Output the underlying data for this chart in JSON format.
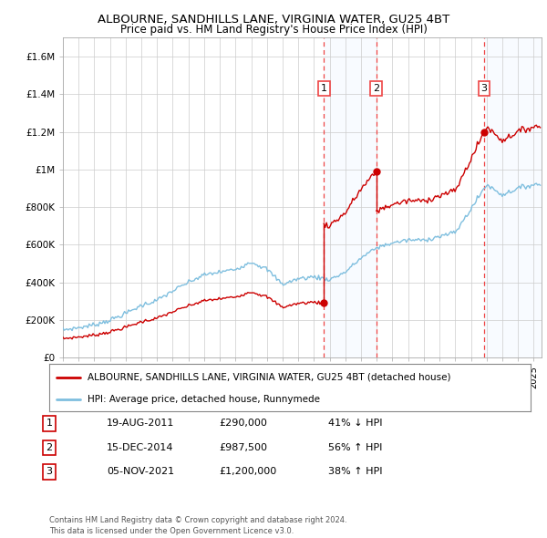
{
  "title": "ALBOURNE, SANDHILLS LANE, VIRGINIA WATER, GU25 4BT",
  "subtitle": "Price paid vs. HM Land Registry's House Price Index (HPI)",
  "ylim": [
    0,
    1700000
  ],
  "yticks": [
    0,
    200000,
    400000,
    600000,
    800000,
    1000000,
    1200000,
    1400000,
    1600000
  ],
  "ytick_labels": [
    "£0",
    "£200K",
    "£400K",
    "£600K",
    "£800K",
    "£1M",
    "£1.2M",
    "£1.4M",
    "£1.6M"
  ],
  "hpi_color": "#7fbfdf",
  "price_color": "#cc0000",
  "vline_color": "#ee4444",
  "shade_color": "#ddeeff",
  "legend_box_label": "ALBOURNE, SANDHILLS LANE, VIRGINIA WATER, GU25 4BT (detached house)",
  "legend_hpi_label": "HPI: Average price, detached house, Runnymede",
  "transactions": [
    {
      "price": 290000,
      "label": "1",
      "x_year": 2011.63
    },
    {
      "price": 987500,
      "label": "2",
      "x_year": 2014.96
    },
    {
      "price": 1200000,
      "label": "3",
      "x_year": 2021.84
    }
  ],
  "table_rows": [
    [
      "1",
      "19-AUG-2011",
      "£290,000",
      "41% ↓ HPI"
    ],
    [
      "2",
      "15-DEC-2014",
      "£987,500",
      "56% ↑ HPI"
    ],
    [
      "3",
      "05-NOV-2021",
      "£1,200,000",
      "38% ↑ HPI"
    ]
  ],
  "footer": "Contains HM Land Registry data © Crown copyright and database right 2024.\nThis data is licensed under the Open Government Licence v3.0.",
  "background_color": "#ffffff",
  "grid_color": "#cccccc",
  "xlim_start": 1995.0,
  "xlim_end": 2025.5
}
